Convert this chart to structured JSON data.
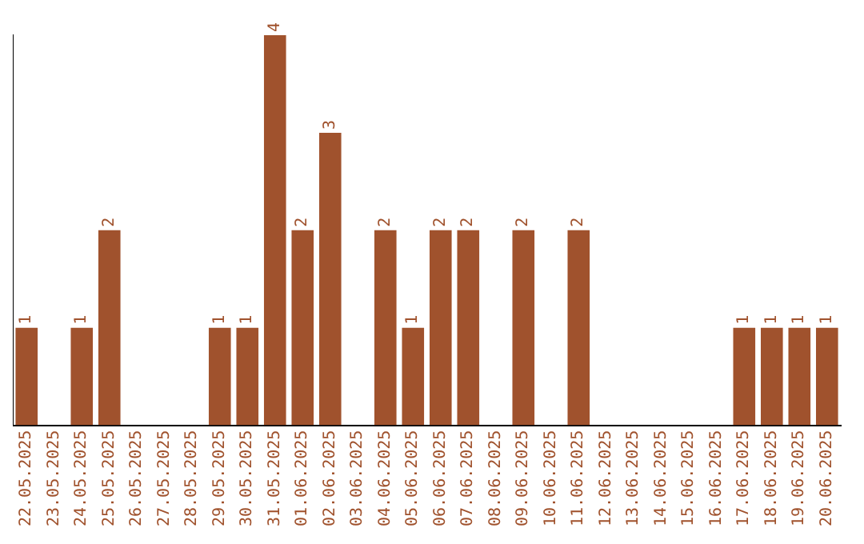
{
  "chart_data": {
    "type": "bar",
    "relative": false,
    "categories": [
      "22.05.2025",
      "23.05.2025",
      "24.05.2025",
      "25.05.2025",
      "26.05.2025",
      "27.05.2025",
      "28.05.2025",
      "29.05.2025",
      "30.05.2025",
      "31.05.2025",
      "01.06.2025",
      "02.06.2025",
      "03.06.2025",
      "04.06.2025",
      "05.06.2025",
      "06.06.2025",
      "07.06.2025",
      "08.06.2025",
      "09.06.2025",
      "10.06.2025",
      "11.06.2025",
      "12.06.2025",
      "13.06.2025",
      "14.06.2025",
      "15.06.2025",
      "16.06.2025",
      "17.06.2025",
      "18.06.2025",
      "19.06.2025",
      "20.06.2025"
    ],
    "values": [
      1,
      0,
      1,
      2,
      0,
      0,
      0,
      1,
      1,
      4,
      2,
      3,
      0,
      2,
      1,
      2,
      2,
      0,
      2,
      0,
      2,
      0,
      0,
      0,
      0,
      0,
      1,
      1,
      1,
      1
    ],
    "value_labels": [
      "1",
      null,
      "1",
      "2",
      null,
      null,
      null,
      "1",
      "1",
      "4",
      "2",
      "3",
      null,
      "2",
      "1",
      "2",
      "2",
      null,
      "2",
      null,
      "2",
      null,
      null,
      null,
      null,
      null,
      "1",
      "1",
      "1",
      "1"
    ],
    "color": "#a0522d",
    "grid": false,
    "legend": false,
    "tick_labels": "x"
  }
}
